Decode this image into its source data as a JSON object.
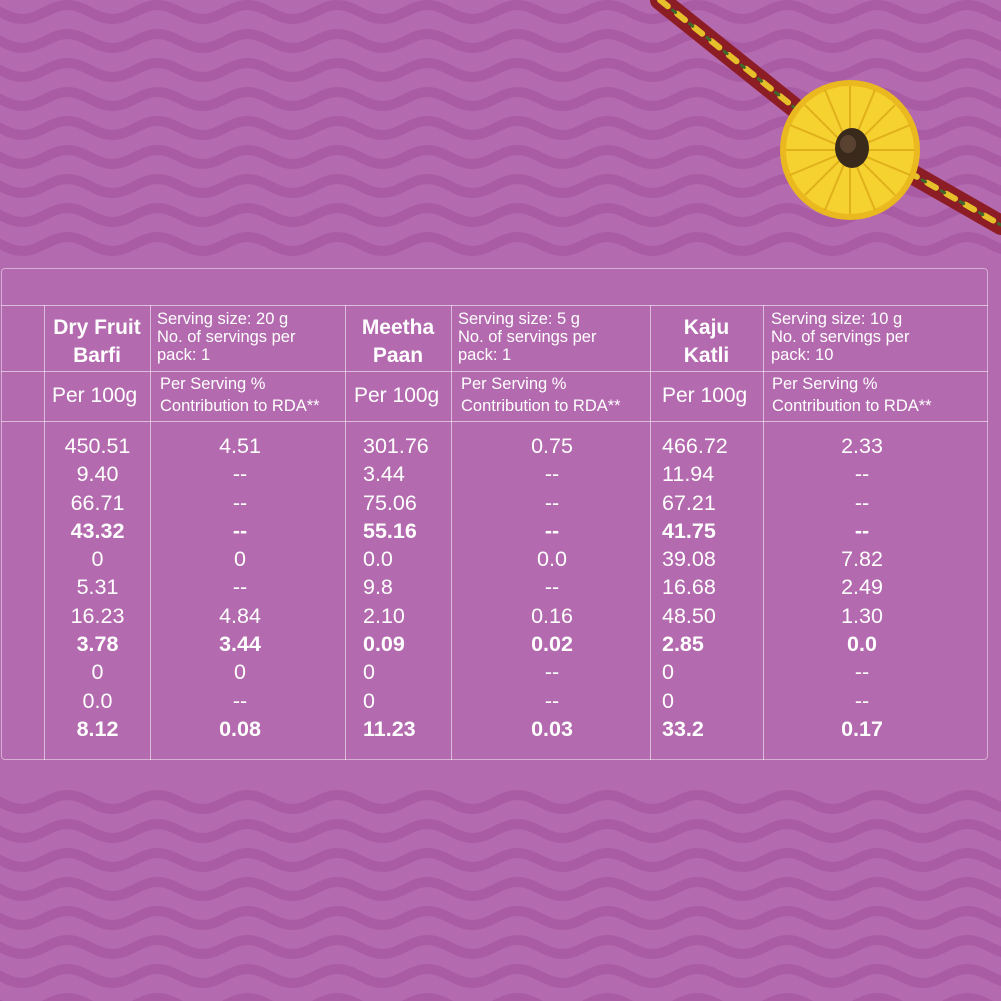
{
  "products": [
    {
      "name_line1": "Dry Fruit",
      "name_line2": "Barfi",
      "serving_line1": "Serving size: 20 g",
      "serving_line2": "No. of servings per",
      "serving_line3": "pack: 1",
      "per100_label": "Per 100g",
      "rda_line1": "Per Serving %",
      "rda_line2": "Contribution to RDA**",
      "per100": [
        "450.51",
        "9.40",
        "66.71",
        "43.32",
        "0",
        "5.31",
        "16.23",
        "3.78",
        "0",
        "0.0",
        "8.12"
      ],
      "rda": [
        "4.51",
        "--",
        "--",
        "--",
        "0",
        "--",
        "4.84",
        "3.44",
        "0",
        "--",
        "0.08"
      ]
    },
    {
      "name_line1": "Meetha",
      "name_line2": "Paan",
      "serving_line1": "Serving size: 5 g",
      "serving_line2": "No. of servings per",
      "serving_line3": "pack: 1",
      "per100_label": "Per 100g",
      "rda_line1": "Per Serving %",
      "rda_line2": "Contribution to RDA**",
      "per100": [
        "301.76",
        "3.44",
        "75.06",
        "55.16",
        "0.0",
        "9.8",
        "2.10",
        "0.09",
        "0",
        "0",
        "11.23"
      ],
      "rda": [
        "0.75",
        "--",
        "--",
        "--",
        "0.0",
        "--",
        "0.16",
        "0.02",
        "--",
        "--",
        "0.03"
      ]
    },
    {
      "name_line1": "Kaju",
      "name_line2": "Katli",
      "serving_line1": "Serving size: 10 g",
      "serving_line2": "No. of servings per",
      "serving_line3": "pack: 10",
      "per100_label": "Per 100g",
      "rda_line1": "Per Serving %",
      "rda_line2": "Contribution to RDA**",
      "per100": [
        "466.72",
        "11.94",
        "67.21",
        "41.75",
        "39.08",
        "16.68",
        "48.50",
        "2.85",
        "0",
        "0",
        "33.2"
      ],
      "rda": [
        "2.33",
        "--",
        "--",
        "--",
        "7.82",
        "2.49",
        "1.30",
        "0.0",
        "--",
        "--",
        "0.17"
      ]
    }
  ],
  "bold_rows": [
    3,
    7,
    10
  ],
  "colors": {
    "background": "#b46aaf",
    "wave": "#a95ba4",
    "text": "#ffffff",
    "rakhi_pompom": "#f2c82b",
    "rakhi_thread_red": "#8d1d25",
    "rakhi_thread_yellow": "#e6c02a"
  },
  "decorations": {
    "rakhi_icon": "rakhi-pompom-icon",
    "wave_pattern": "wavy-stripes"
  }
}
